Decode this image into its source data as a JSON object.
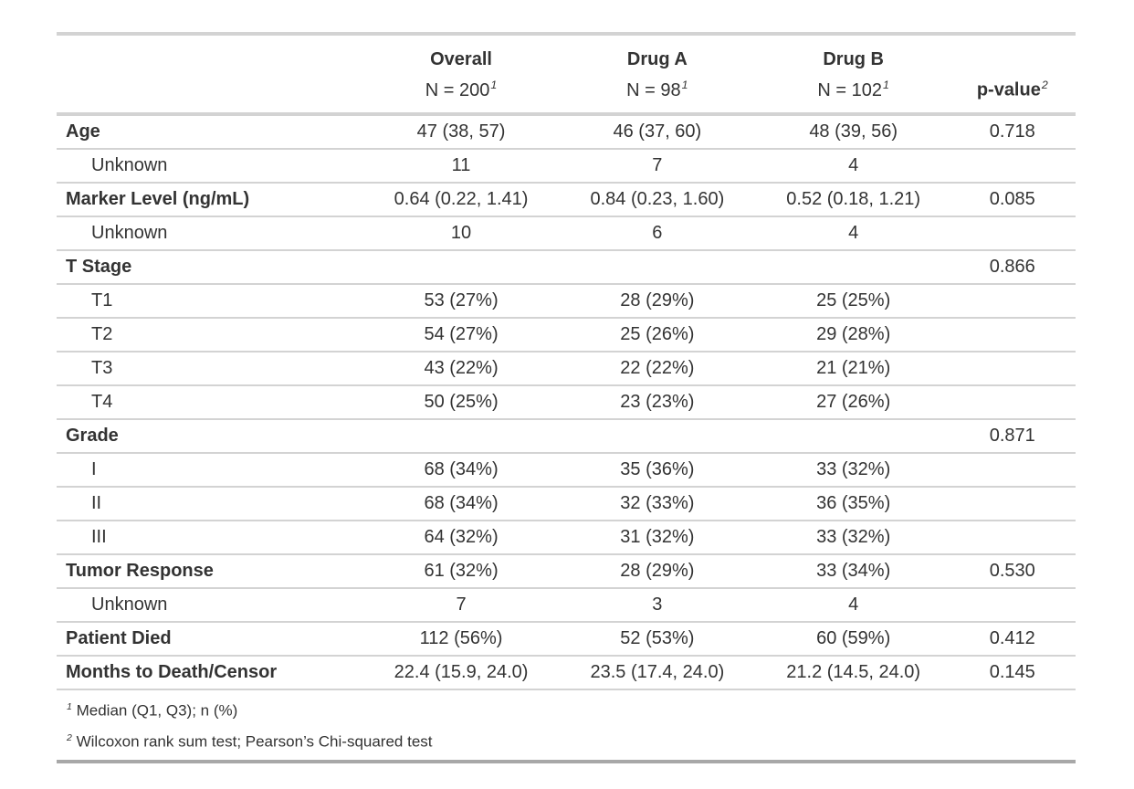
{
  "chart_data": {
    "type": "table",
    "columns": [
      {
        "id": "label",
        "line1": "",
        "line2": "",
        "mark": ""
      },
      {
        "id": "overall",
        "line1": "Overall",
        "line2": "N = 200",
        "mark": "1"
      },
      {
        "id": "drug_a",
        "line1": "Drug A",
        "line2": "N = 98",
        "mark": "1"
      },
      {
        "id": "drug_b",
        "line1": "Drug B",
        "line2": "N = 102",
        "mark": "1"
      },
      {
        "id": "p_value",
        "line1": "p-value",
        "line2": "",
        "mark": "2"
      }
    ],
    "rows": [
      {
        "label": "Age",
        "style": "variable",
        "overall": "47 (38, 57)",
        "drug_a": "46 (37, 60)",
        "drug_b": "48 (39, 56)",
        "p_value": "0.718"
      },
      {
        "label": "Unknown",
        "style": "level",
        "overall": "11",
        "drug_a": "7",
        "drug_b": "4",
        "p_value": ""
      },
      {
        "label": "Marker Level (ng/mL)",
        "style": "variable",
        "overall": "0.64 (0.22, 1.41)",
        "drug_a": "0.84 (0.23, 1.60)",
        "drug_b": "0.52 (0.18, 1.21)",
        "p_value": "0.085"
      },
      {
        "label": "Unknown",
        "style": "level",
        "overall": "10",
        "drug_a": "6",
        "drug_b": "4",
        "p_value": ""
      },
      {
        "label": "T Stage",
        "style": "variable",
        "overall": "",
        "drug_a": "",
        "drug_b": "",
        "p_value": "0.866"
      },
      {
        "label": "T1",
        "style": "level",
        "overall": "53 (27%)",
        "drug_a": "28 (29%)",
        "drug_b": "25 (25%)",
        "p_value": ""
      },
      {
        "label": "T2",
        "style": "level",
        "overall": "54 (27%)",
        "drug_a": "25 (26%)",
        "drug_b": "29 (28%)",
        "p_value": ""
      },
      {
        "label": "T3",
        "style": "level",
        "overall": "43 (22%)",
        "drug_a": "22 (22%)",
        "drug_b": "21 (21%)",
        "p_value": ""
      },
      {
        "label": "T4",
        "style": "level",
        "overall": "50 (25%)",
        "drug_a": "23 (23%)",
        "drug_b": "27 (26%)",
        "p_value": ""
      },
      {
        "label": "Grade",
        "style": "variable",
        "overall": "",
        "drug_a": "",
        "drug_b": "",
        "p_value": "0.871"
      },
      {
        "label": "I",
        "style": "level",
        "overall": "68 (34%)",
        "drug_a": "35 (36%)",
        "drug_b": "33 (32%)",
        "p_value": ""
      },
      {
        "label": "II",
        "style": "level",
        "overall": "68 (34%)",
        "drug_a": "32 (33%)",
        "drug_b": "36 (35%)",
        "p_value": ""
      },
      {
        "label": "III",
        "style": "level",
        "overall": "64 (32%)",
        "drug_a": "31 (32%)",
        "drug_b": "33 (32%)",
        "p_value": ""
      },
      {
        "label": "Tumor Response",
        "style": "variable",
        "overall": "61 (32%)",
        "drug_a": "28 (29%)",
        "drug_b": "33 (34%)",
        "p_value": "0.530"
      },
      {
        "label": "Unknown",
        "style": "level",
        "overall": "7",
        "drug_a": "3",
        "drug_b": "4",
        "p_value": ""
      },
      {
        "label": "Patient Died",
        "style": "variable",
        "overall": "112 (56%)",
        "drug_a": "52 (53%)",
        "drug_b": "60 (59%)",
        "p_value": "0.412"
      },
      {
        "label": "Months to Death/Censor",
        "style": "variable",
        "overall": "22.4 (15.9, 24.0)",
        "drug_a": "23.5 (17.4, 24.0)",
        "drug_b": "21.2 (14.5, 24.0)",
        "p_value": "0.145"
      }
    ],
    "footnotes": [
      {
        "mark": "1",
        "text": "Median (Q1, Q3); n (%)"
      },
      {
        "mark": "2",
        "text": "Wilcoxon rank sum test; Pearson’s Chi-squared test"
      }
    ],
    "colors": {
      "text": "#333333",
      "row_border": "#D3D3D3",
      "bottom_border": "#A8A8A8",
      "background": "#FFFFFF"
    },
    "layout": {
      "grid": "horizontal-row-separators-only",
      "legend": "none",
      "label_column_align": "left",
      "stat_columns_align": "center"
    }
  }
}
